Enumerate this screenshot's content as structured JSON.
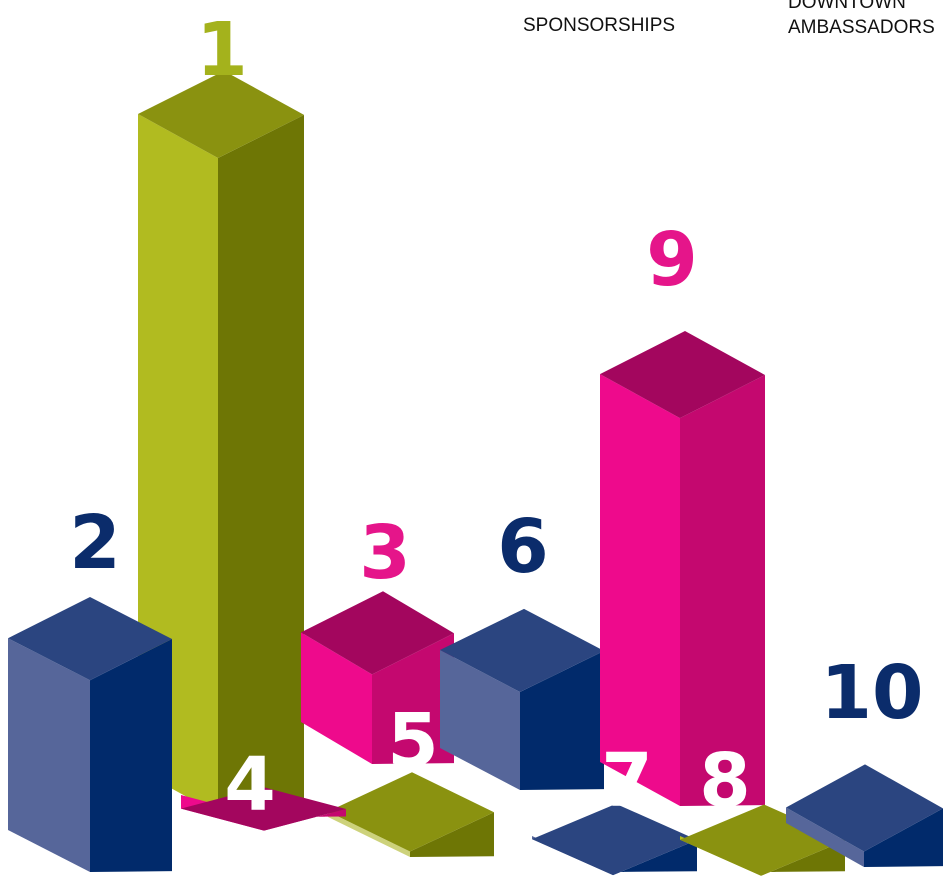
{
  "chart_data": {
    "type": "bar",
    "title": "",
    "categories": [
      "1",
      "2",
      "3",
      "4",
      "5",
      "6",
      "7",
      "8",
      "9",
      "10"
    ],
    "values": [
      1,
      0.334,
      0.188,
      0.012,
      0.065,
      0.2,
      0.047,
      0.046,
      0.617,
      0.085
    ],
    "units": "relative height (tallest bar = 1)",
    "colors": [
      "olive",
      "navy",
      "magenta",
      "magenta",
      "olive",
      "navy",
      "navy",
      "olive",
      "magenta",
      "navy"
    ]
  },
  "palette": {
    "olive": {
      "front": "#b1bb20",
      "side": "#6e7605",
      "top": "#8a9210"
    },
    "navy": {
      "front": "#56669a",
      "side": "#012a6b",
      "top": "#2b4580"
    },
    "magenta": {
      "front": "#ee0a8c",
      "side": "#c4086f",
      "top": "#a3065e"
    },
    "pale_olive_front": "#cdd27b",
    "label_olive": "#a4b21c",
    "label_navy": "#0b2c6b",
    "label_magenta": "#e5158a",
    "label_white": "#ffffff"
  },
  "legend": {
    "sponsorships_label": "SPONSORSHIPS",
    "ambassadors_label_line1": "DOWNTOWN",
    "ambassadors_label_line2": "AMBASSADORS"
  }
}
